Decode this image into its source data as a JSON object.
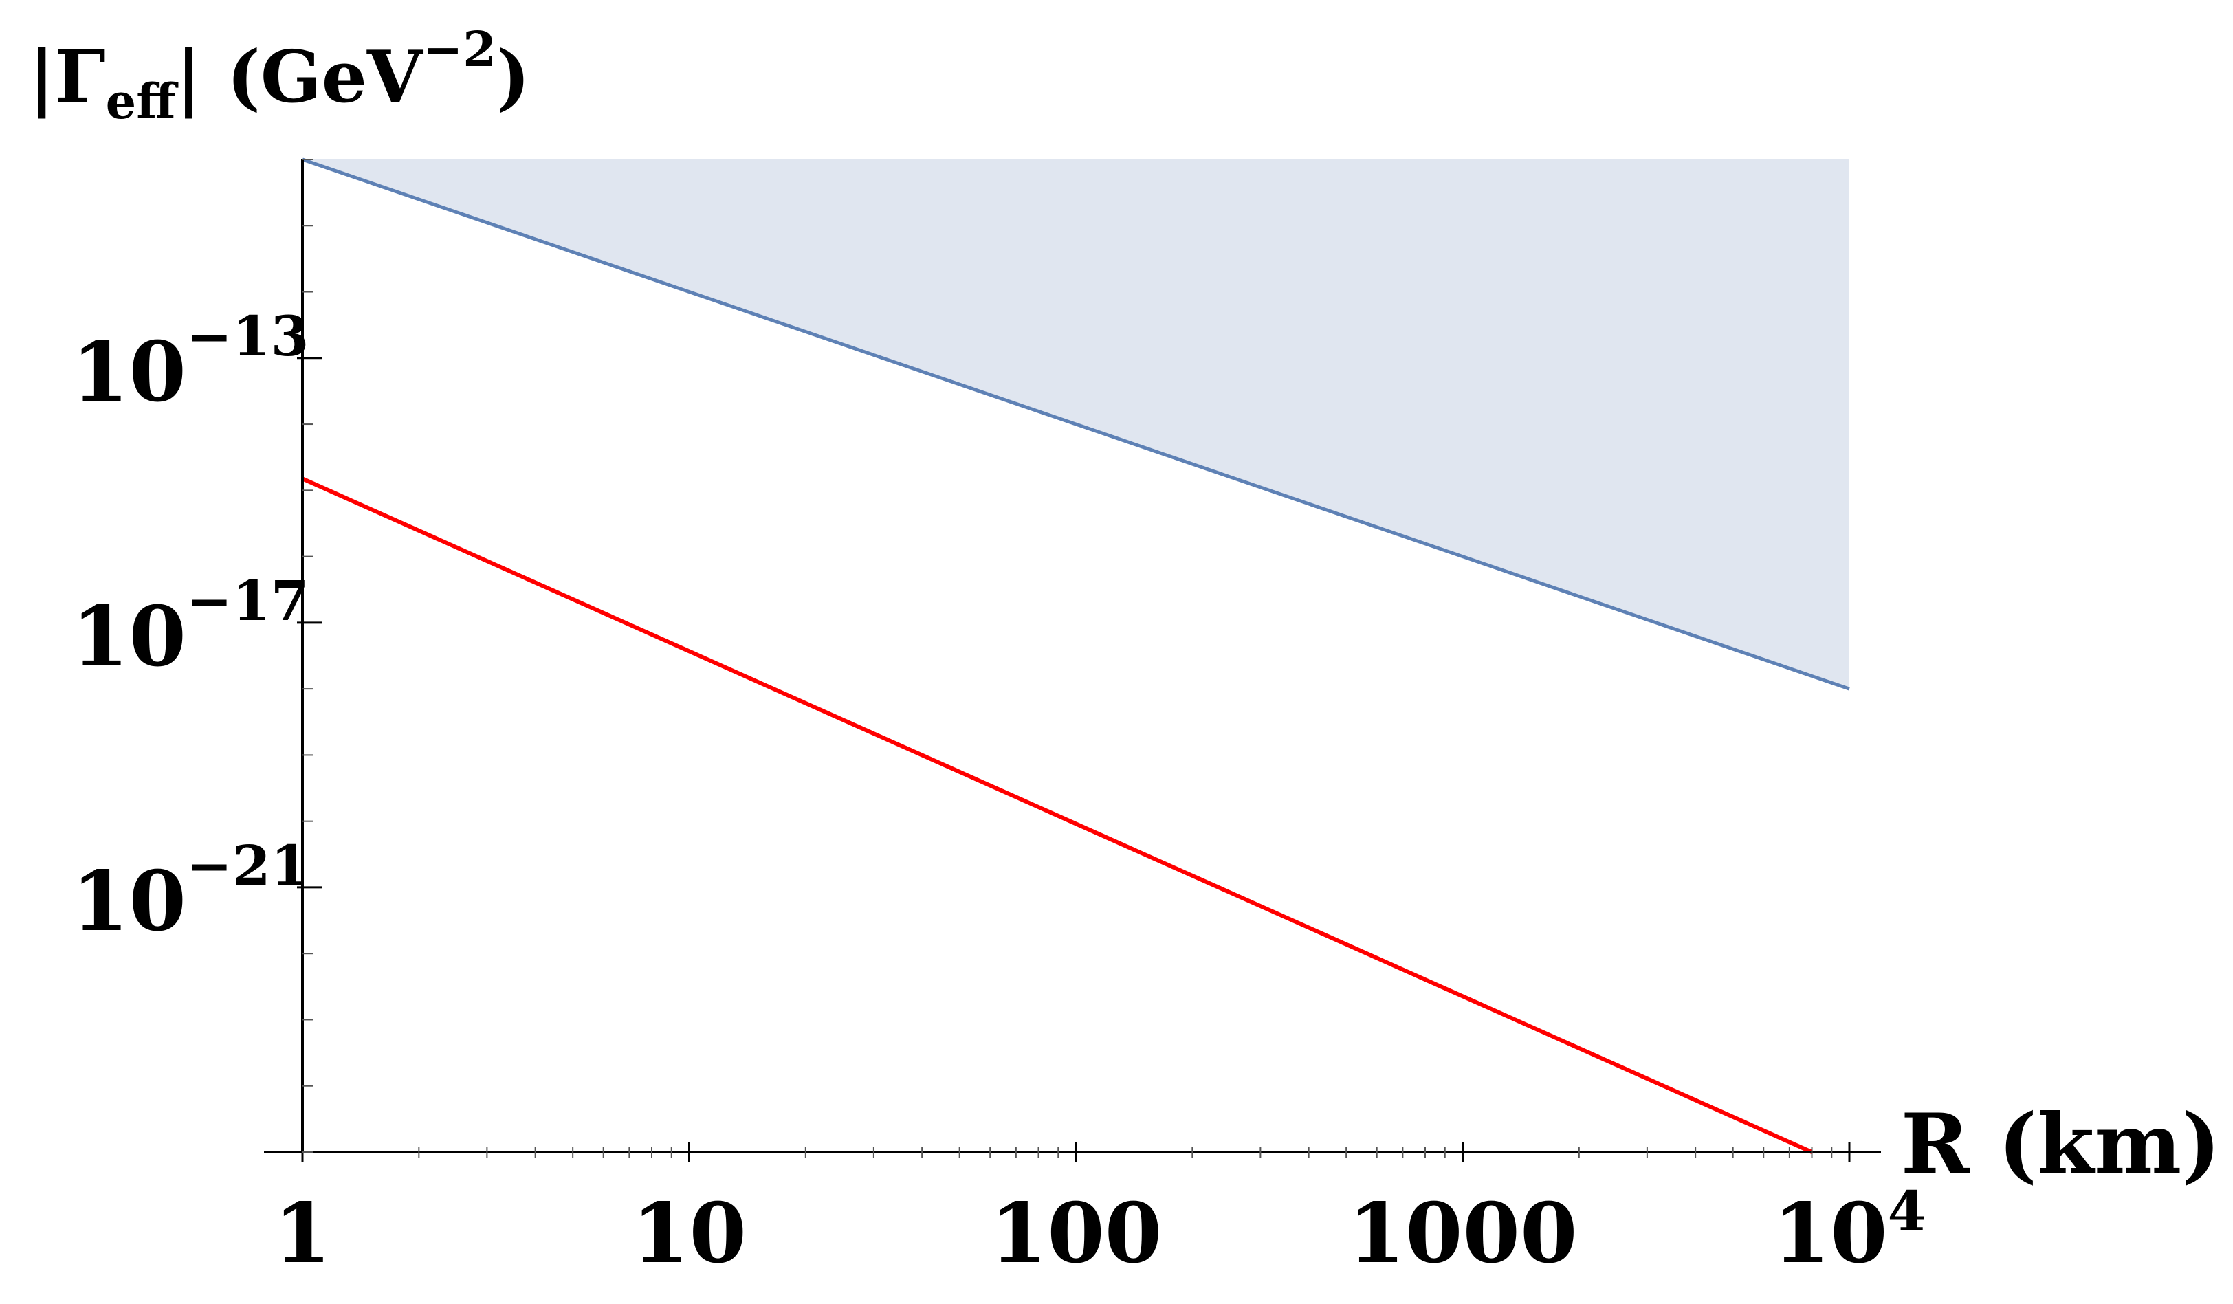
{
  "chart_data": {
    "type": "line",
    "xscale": "log",
    "yscale": "log",
    "xlim": [
      1,
      10000
    ],
    "ylim": [
      1e-25,
      1e-10
    ],
    "ylabel": {
      "base": "|Γ",
      "sub": "eff",
      "rest": "| (GeV",
      "sup": "−2",
      "close": ")"
    },
    "xlabel": "R (km)",
    "x_ticks": [
      {
        "value": 1,
        "label": "1"
      },
      {
        "value": 10,
        "label": "10"
      },
      {
        "value": 100,
        "label": "100"
      },
      {
        "value": 1000,
        "label": "1000"
      },
      {
        "value": 10000,
        "label": "10",
        "sup": "4"
      }
    ],
    "y_ticks": [
      {
        "value": 1e-13,
        "base": "10",
        "sup": "−13"
      },
      {
        "value": 1e-17,
        "base": "10",
        "sup": "−17"
      },
      {
        "value": 1e-21,
        "base": "10",
        "sup": "−21"
      }
    ],
    "series": [
      {
        "color": "#5e81b5",
        "line_width": 5,
        "shaded_above": true,
        "shade_color": "#e0e6f0",
        "x": [
          1,
          10000
        ],
        "y": [
          1e-10,
          1e-18
        ]
      },
      {
        "color": "#ff0000",
        "line_width": 6,
        "shaded_above": false,
        "x": [
          1,
          8000
        ],
        "y": [
          1.5e-15,
          1e-25
        ]
      }
    ],
    "grid": false,
    "legend": "none"
  }
}
